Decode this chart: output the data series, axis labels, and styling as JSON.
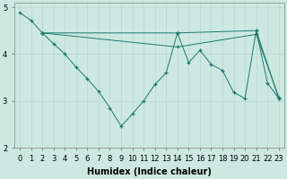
{
  "xlabel": "Humidex (Indice chaleur)",
  "background_color": "#cce8e0",
  "line_color": "#1a7a6e",
  "xlim": [
    -0.5,
    23.5
  ],
  "ylim": [
    2,
    5.1
  ],
  "yticks": [
    2,
    3,
    4,
    5
  ],
  "xticks": [
    0,
    1,
    2,
    3,
    4,
    5,
    6,
    7,
    8,
    9,
    10,
    11,
    12,
    13,
    14,
    15,
    16,
    17,
    18,
    19,
    20,
    21,
    22,
    23
  ],
  "series": [
    {
      "x": [
        0,
        1,
        2,
        3,
        4,
        5,
        6,
        7,
        8,
        9,
        10,
        11,
        12,
        13,
        14,
        15,
        16,
        17,
        18,
        19,
        20,
        21,
        22,
        23
      ],
      "y": [
        4.88,
        4.72,
        4.45,
        4.22,
        4.0,
        3.72,
        3.47,
        3.2,
        2.85,
        2.46,
        2.72,
        3.0,
        3.35,
        3.6,
        4.45,
        3.82,
        4.08,
        3.78,
        3.65,
        3.18,
        3.05,
        4.5,
        3.38,
        3.05
      ]
    },
    {
      "x": [
        2,
        14,
        21,
        23
      ],
      "y": [
        4.45,
        4.45,
        4.5,
        3.05
      ]
    },
    {
      "x": [
        2,
        14,
        21,
        23
      ],
      "y": [
        4.45,
        4.15,
        4.42,
        3.08
      ]
    }
  ],
  "grid_color": "#b8d8d0",
  "tick_fontsize": 6,
  "xlabel_fontsize": 7,
  "ylabel_fontsize": 7,
  "figsize": [
    3.2,
    2.0
  ],
  "dpi": 100
}
